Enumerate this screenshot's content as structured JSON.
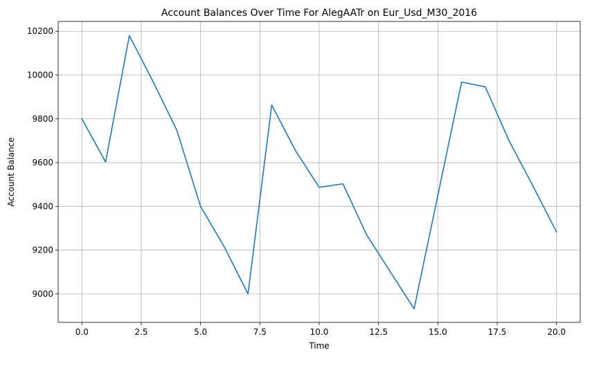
{
  "chart_data": {
    "type": "line",
    "title": "Account Balances Over Time For AlegAATr on Eur_Usd_M30_2016",
    "xlabel": "Time",
    "ylabel": "Account Balance",
    "xlim": [
      -1.0,
      21.0
    ],
    "ylim": [
      8870,
      10245
    ],
    "xticks": [
      0.0,
      2.5,
      5.0,
      7.5,
      10.0,
      12.5,
      15.0,
      17.5,
      20.0
    ],
    "xtick_labels": [
      "0.0",
      "2.5",
      "5.0",
      "7.5",
      "10.0",
      "12.5",
      "15.0",
      "17.5",
      "20.0"
    ],
    "yticks": [
      9000,
      9200,
      9400,
      9600,
      9800,
      10000,
      10200
    ],
    "ytick_labels": [
      "9000",
      "9200",
      "9400",
      "9600",
      "9800",
      "10000",
      "10200"
    ],
    "grid": true,
    "series": [
      {
        "color": "#1f77b4",
        "x": [
          0,
          1,
          2,
          3,
          4,
          5,
          6,
          7,
          8,
          9,
          10,
          11,
          12,
          13,
          14,
          15,
          16,
          17,
          18,
          19,
          20
        ],
        "y": [
          9800,
          9603,
          10180,
          9970,
          9748,
          9400,
          9215,
          9000,
          9863,
          9655,
          9487,
          9503,
          9270,
          9100,
          8932,
          9450,
          9968,
          9946,
          9700,
          9495,
          9283
        ]
      }
    ]
  }
}
